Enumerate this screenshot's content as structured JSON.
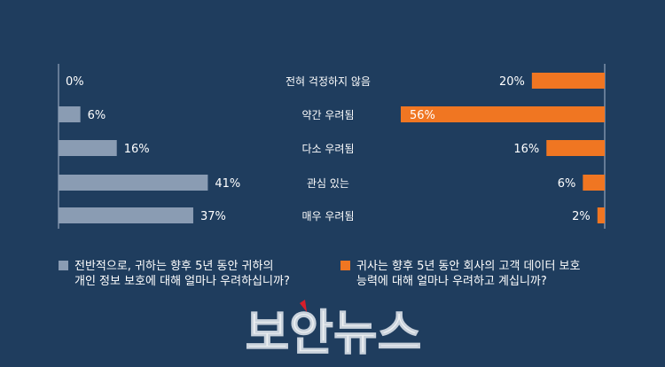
{
  "chart_data": {
    "type": "bar",
    "categories": [
      "전혀 걱정하지 않음",
      "약간 우려됨",
      "다소 우려됨",
      "관심 있는",
      "매우 우려됨"
    ],
    "series": [
      {
        "name": "전반적으로, 귀하는 향후 5년 동안 귀하의 개인 정보 보호에 대해 얼마나 우려하십니까?",
        "name_lines": [
          "전반적으로, 귀하는 향후 5년 동안 귀하의",
          "개인 정보 보호에 대해 얼마나 우려하십니까?"
        ],
        "values": [
          0,
          6,
          16,
          41,
          37
        ],
        "labels": [
          "0%",
          "6%",
          "16%",
          "41%",
          "37%"
        ],
        "color": "#8a9cb3"
      },
      {
        "name": "귀사는 향후 5년 동안 회사의 고객 데이터 보호 능력에 대해 얼마나 우려하고 계십니까?",
        "name_lines": [
          "귀사는 향후 5년 동안 회사의 고객 데이터 보호",
          "능력에 대해 얼마나 우려하고 계십니까?"
        ],
        "values": [
          20,
          56,
          16,
          6,
          2
        ],
        "labels": [
          "20%",
          "56%",
          "16%",
          "6%",
          "2%"
        ],
        "color": "#f07622"
      }
    ],
    "xlim": [
      0,
      60
    ],
    "grid": false
  },
  "watermark": {
    "text": "보안뉴스"
  }
}
